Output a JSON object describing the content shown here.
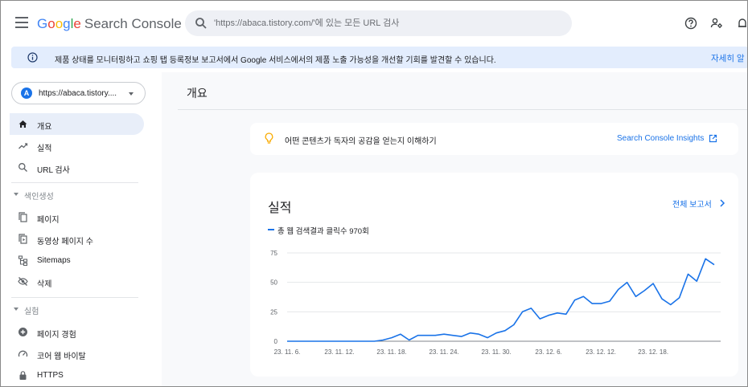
{
  "header": {
    "logo_letters": [
      "G",
      "o",
      "o",
      "g",
      "l",
      "e"
    ],
    "product_name": "Search Console",
    "search_placeholder": "'https://abaca.tistory.com/'에 있는 모든 URL 검사",
    "icons": [
      "menu-icon",
      "search-icon",
      "help-icon",
      "manage-users-icon"
    ]
  },
  "banner": {
    "message": "제품 상태를 모니터링하고 쇼핑 탭 등록정보 보고서에서 Google 서비스에서의 제품 노출 가능성을 개선할 기회를 발견할 수 있습니다.",
    "link": "자세히 알"
  },
  "sidebar": {
    "property_badge": "A",
    "property_url": "https://abaca.tistory....",
    "items": [
      {
        "label": "개요",
        "icon": "home-icon",
        "active": true
      },
      {
        "label": "실적",
        "icon": "trending-up-icon",
        "active": false
      },
      {
        "label": "URL 검사",
        "icon": "search-icon",
        "active": false
      }
    ],
    "section_indexing": "색인생성",
    "indexing_items": [
      {
        "label": "페이지",
        "icon": "pages-icon"
      },
      {
        "label": "동영상 페이지 수",
        "icon": "video-pages-icon"
      },
      {
        "label": "Sitemaps",
        "icon": "sitemap-icon"
      },
      {
        "label": "삭제",
        "icon": "visibility-off-icon"
      }
    ],
    "section_experience": "실험",
    "experience_items": [
      {
        "label": "페이지 경험",
        "icon": "plus-circle-icon"
      },
      {
        "label": "코어 웹 바이탈",
        "icon": "speed-icon"
      },
      {
        "label": "HTTPS",
        "icon": "lock-icon"
      }
    ]
  },
  "main": {
    "page_title": "개요",
    "insight_text": "어떤 콘텐츠가 독자의 공감을 얻는지 이해하기",
    "insight_link": "Search Console Insights",
    "performance": {
      "title": "실적",
      "full_report": "전체 보고서",
      "legend": "총 웹 검색결과 클릭수 970회"
    }
  },
  "colors": {
    "accent": "#1a73e8",
    "active_nav_bg": "#e8eef9",
    "banner_bg": "#e3edfd",
    "bulb": "#f9ab00"
  },
  "chart_data": {
    "type": "line",
    "series": [
      {
        "name": "총 웹 검색결과 클릭수 970회",
        "values": [
          0,
          0,
          0,
          0,
          0,
          0,
          0,
          0,
          0,
          0,
          0,
          1,
          3,
          6,
          1,
          5,
          5,
          5,
          6,
          5,
          4,
          7,
          6,
          3,
          7,
          9,
          14,
          25,
          28,
          19,
          22,
          24,
          23,
          35,
          38,
          32,
          32,
          34,
          44,
          50,
          38,
          43,
          49,
          36,
          31,
          37,
          57,
          51,
          70,
          65
        ]
      }
    ],
    "x_tick_labels": [
      "23. 11. 6.",
      "23. 11. 12.",
      "23. 11. 18.",
      "23. 11. 24.",
      "23. 11. 30.",
      "23. 12. 6.",
      "23. 12. 12.",
      "23. 12. 18."
    ],
    "x_tick_indices": [
      0,
      6,
      12,
      18,
      24,
      30,
      36,
      42
    ],
    "y_ticks": [
      0,
      25,
      50,
      75
    ],
    "ylim": [
      0,
      75
    ],
    "grid": true,
    "legend": "top-left"
  }
}
